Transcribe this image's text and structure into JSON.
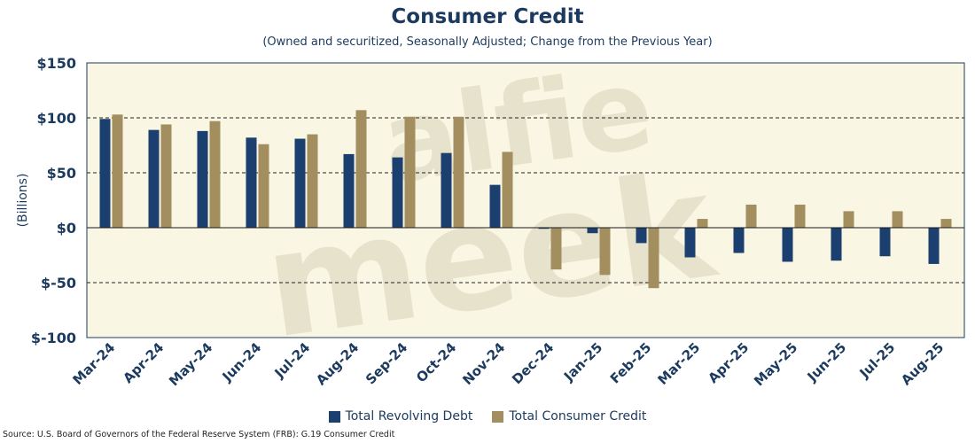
{
  "chart_data": {
    "type": "bar",
    "title": "Consumer Credit",
    "subtitle": "(Owned and securitized, Seasonally Adjusted; Change from the Previous Year)",
    "ylabel": "(Billions)",
    "xlabel": "",
    "ylim": [
      -100,
      150
    ],
    "yticks": [
      150,
      100,
      50,
      0,
      -50,
      -100
    ],
    "ytick_labels": [
      "$150",
      "$100",
      "$50",
      "$0",
      "$-50",
      "$-100"
    ],
    "categories": [
      "Mar-24",
      "Apr-24",
      "May-24",
      "Jun-24",
      "Jul-24",
      "Aug-24",
      "Sep-24",
      "Oct-24",
      "Nov-24",
      "Dec-24",
      "Jan-25",
      "Feb-25",
      "Mar-25",
      "Apr-25",
      "May-25",
      "Jun-25",
      "Jul-25",
      "Aug-25"
    ],
    "series": [
      {
        "name": "Total Revolving Debt",
        "color": "#1b3f6e",
        "values": [
          99,
          89,
          88,
          82,
          81,
          67,
          64,
          68,
          39,
          -1,
          -5,
          -14,
          -27,
          -23,
          -31,
          -30,
          -26,
          -33
        ]
      },
      {
        "name": "Total Consumer Credit",
        "color": "#a38e5f",
        "values": [
          103,
          94,
          97,
          76,
          85,
          107,
          101,
          101,
          69,
          -38,
          -43,
          -55,
          8,
          21,
          21,
          15,
          15,
          8
        ]
      }
    ],
    "grid": "dashed horizontal",
    "legend_position": "bottom-center"
  },
  "watermark": {
    "line1": "alfie",
    "line2": "meek"
  },
  "source": "Source: U.S. Board of Governors of the Federal Reserve System (FRB): G.19 Consumer Credit",
  "colors": {
    "plot_bg": "#f9f6e3",
    "axis_text": "#1b3a5e",
    "frame": "#1b3a5e"
  }
}
